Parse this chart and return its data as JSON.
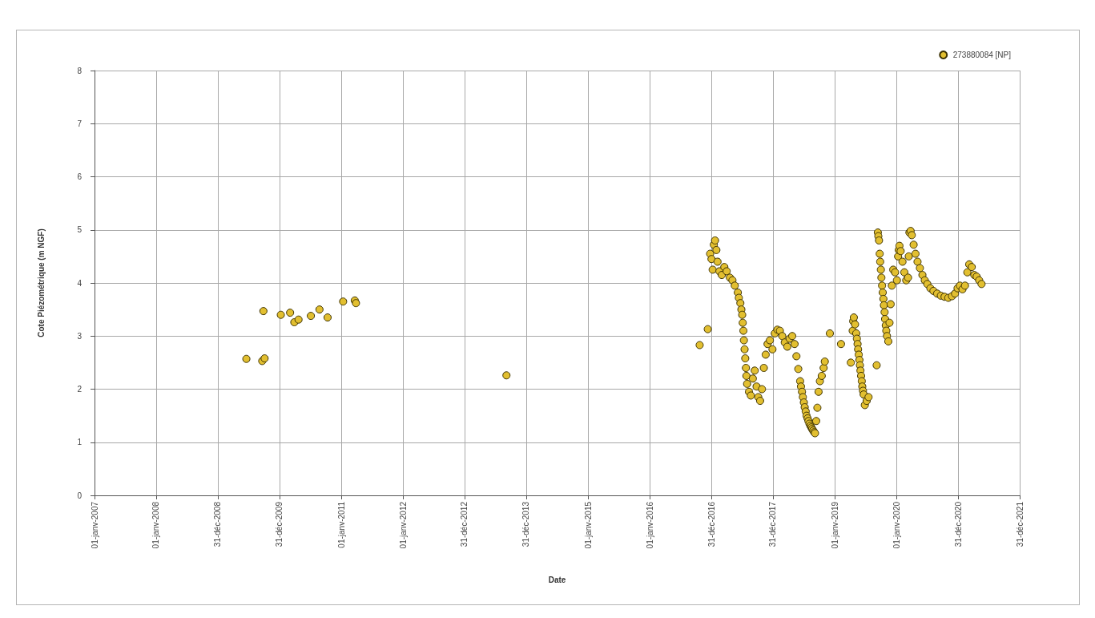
{
  "chart_data": {
    "type": "scatter",
    "xlabel": "Date",
    "ylabel": "Cote Piézométrique (m NGF)",
    "x": [
      "2009-06-18",
      "2009-09-20",
      "2009-09-27",
      "2009-10-04",
      "2010-01-08",
      "2010-03-04",
      "2010-03-29",
      "2010-04-23",
      "2010-07-05",
      "2010-08-25",
      "2010-10-12",
      "2011-01-12",
      "2011-03-22",
      "2011-03-29",
      "2013-09-05",
      "2016-10-23",
      "2016-12-10",
      "2016-12-24",
      "2017-01-01",
      "2017-01-08",
      "2017-01-15",
      "2017-01-22",
      "2017-01-30",
      "2017-02-06",
      "2017-02-17",
      "2017-03-03",
      "2017-03-18",
      "2017-04-01",
      "2017-04-20",
      "2017-05-05",
      "2017-05-19",
      "2017-06-06",
      "2017-06-12",
      "2017-06-21",
      "2017-06-27",
      "2017-07-02",
      "2017-07-05",
      "2017-07-09",
      "2017-07-12",
      "2017-07-16",
      "2017-07-20",
      "2017-07-24",
      "2017-07-27",
      "2017-07-31",
      "2017-08-11",
      "2017-08-22",
      "2017-09-03",
      "2017-09-14",
      "2017-09-25",
      "2017-10-05",
      "2017-10-16",
      "2017-10-27",
      "2017-11-07",
      "2017-11-18",
      "2017-11-29",
      "2017-12-13",
      "2017-12-28",
      "2018-01-11",
      "2018-01-26",
      "2018-02-10",
      "2018-02-24",
      "2018-03-11",
      "2018-03-26",
      "2018-04-09",
      "2018-04-24",
      "2018-05-08",
      "2018-05-19",
      "2018-05-30",
      "2018-06-10",
      "2018-06-15",
      "2018-06-21",
      "2018-06-26",
      "2018-07-02",
      "2018-07-07",
      "2018-07-13",
      "2018-07-18",
      "2018-07-24",
      "2018-07-29",
      "2018-08-04",
      "2018-08-10",
      "2018-08-15",
      "2018-08-20",
      "2018-08-26",
      "2018-09-01",
      "2018-09-06",
      "2018-09-13",
      "2018-09-20",
      "2018-09-27",
      "2018-10-05",
      "2018-10-16",
      "2018-10-27",
      "2018-11-03",
      "2018-12-03",
      "2019-02-07",
      "2019-04-06",
      "2019-04-17",
      "2019-04-20",
      "2019-04-24",
      "2019-05-01",
      "2019-05-08",
      "2019-05-12",
      "2019-05-16",
      "2019-05-19",
      "2019-05-23",
      "2019-05-27",
      "2019-05-30",
      "2019-06-02",
      "2019-06-06",
      "2019-06-10",
      "2019-06-13",
      "2019-06-17",
      "2019-06-21",
      "2019-06-28",
      "2019-07-09",
      "2019-07-20",
      "2019-09-06",
      "2019-09-13",
      "2019-09-16",
      "2019-09-20",
      "2019-09-24",
      "2019-09-27",
      "2019-10-01",
      "2019-10-04",
      "2019-10-08",
      "2019-10-12",
      "2019-10-16",
      "2019-10-19",
      "2019-10-23",
      "2019-10-26",
      "2019-10-30",
      "2019-11-02",
      "2019-11-06",
      "2019-11-14",
      "2019-11-21",
      "2019-11-28",
      "2019-12-05",
      "2019-12-13",
      "2019-12-24",
      "2020-01-04",
      "2020-01-11",
      "2020-01-15",
      "2020-01-19",
      "2020-01-26",
      "2020-02-06",
      "2020-02-17",
      "2020-02-28",
      "2020-03-10",
      "2020-03-14",
      "2020-03-18",
      "2020-03-25",
      "2020-04-01",
      "2020-04-12",
      "2020-04-23",
      "2020-05-05",
      "2020-05-19",
      "2020-06-03",
      "2020-06-17",
      "2020-07-02",
      "2020-07-20",
      "2020-08-07",
      "2020-08-29",
      "2020-09-20",
      "2020-10-12",
      "2020-11-03",
      "2020-11-25",
      "2020-12-13",
      "2020-12-28",
      "2021-01-11",
      "2021-01-26",
      "2021-02-10",
      "2021-02-24",
      "2021-03-07",
      "2021-03-22",
      "2021-04-06",
      "2021-04-20",
      "2021-05-05",
      "2021-05-19"
    ],
    "series": [
      {
        "name": "273880084 [NP]",
        "color": "#e2bf30",
        "values": [
          2.57,
          2.53,
          3.47,
          2.58,
          3.4,
          3.44,
          3.26,
          3.31,
          3.38,
          3.5,
          3.35,
          3.65,
          3.67,
          3.62,
          2.26,
          2.83,
          3.13,
          4.55,
          4.45,
          4.25,
          4.72,
          4.8,
          4.62,
          4.4,
          4.22,
          4.15,
          4.3,
          4.22,
          4.1,
          4.05,
          3.95,
          3.82,
          3.72,
          3.62,
          3.5,
          3.4,
          3.25,
          3.1,
          2.92,
          2.75,
          2.58,
          2.4,
          2.25,
          2.1,
          1.95,
          1.88,
          2.2,
          2.35,
          2.05,
          1.85,
          1.78,
          2.0,
          2.4,
          2.65,
          2.85,
          2.92,
          2.75,
          3.05,
          3.12,
          3.1,
          3.0,
          2.88,
          2.8,
          2.95,
          3.0,
          2.85,
          2.62,
          2.38,
          2.15,
          2.05,
          1.95,
          1.85,
          1.75,
          1.66,
          1.58,
          1.5,
          1.45,
          1.4,
          1.35,
          1.31,
          1.28,
          1.25,
          1.22,
          1.19,
          1.17,
          1.4,
          1.65,
          1.95,
          2.15,
          2.25,
          2.4,
          2.52,
          3.05,
          2.85,
          2.5,
          3.1,
          3.28,
          3.35,
          3.22,
          3.05,
          2.95,
          2.85,
          2.75,
          2.65,
          2.55,
          2.45,
          2.35,
          2.25,
          2.15,
          2.05,
          1.97,
          1.9,
          1.7,
          1.78,
          1.85,
          2.45,
          4.95,
          4.88,
          4.8,
          4.55,
          4.4,
          4.25,
          4.1,
          3.95,
          3.82,
          3.7,
          3.58,
          3.45,
          3.32,
          3.2,
          3.1,
          3.0,
          2.9,
          3.25,
          3.6,
          3.95,
          4.25,
          4.2,
          4.05,
          4.5,
          4.62,
          4.7,
          4.6,
          4.4,
          4.2,
          4.05,
          4.1,
          4.5,
          4.95,
          4.98,
          4.9,
          4.72,
          4.55,
          4.4,
          4.28,
          4.15,
          4.05,
          3.98,
          3.9,
          3.85,
          3.8,
          3.76,
          3.74,
          3.72,
          3.75,
          3.8,
          3.9,
          3.95,
          3.88,
          3.95,
          4.2,
          4.35,
          4.3,
          4.15,
          4.12,
          4.05,
          3.98
        ]
      }
    ],
    "xlim": [
      "2007-01-01",
      "2021-12-31"
    ],
    "xticks": [
      {
        "value": "2007-01-01",
        "label": "01-janv-2007"
      },
      {
        "value": "2008-01-01",
        "label": "01-janv-2008"
      },
      {
        "value": "2008-12-31",
        "label": "31-déc-2008"
      },
      {
        "value": "2009-12-31",
        "label": "31-déc-2009"
      },
      {
        "value": "2011-01-01",
        "label": "01-janv-2011"
      },
      {
        "value": "2012-01-01",
        "label": "01-janv-2012"
      },
      {
        "value": "2012-12-31",
        "label": "31-déc-2012"
      },
      {
        "value": "2013-12-31",
        "label": "31-déc-2013"
      },
      {
        "value": "2015-01-01",
        "label": "01-janv-2015"
      },
      {
        "value": "2016-01-01",
        "label": "01-janv-2016"
      },
      {
        "value": "2016-12-31",
        "label": "31-déc-2016"
      },
      {
        "value": "2017-12-31",
        "label": "31-déc-2017"
      },
      {
        "value": "2019-01-01",
        "label": "01-janv-2019"
      },
      {
        "value": "2020-01-01",
        "label": "01-janv-2020"
      },
      {
        "value": "2020-12-31",
        "label": "31-déc-2020"
      },
      {
        "value": "2021-12-31",
        "label": "31-déc-2021"
      }
    ],
    "ylim": [
      0,
      8
    ],
    "yticks": [
      0,
      1,
      2,
      3,
      4,
      5,
      6,
      7,
      8
    ],
    "grid": true,
    "legend": "top right",
    "marker": "circle"
  }
}
